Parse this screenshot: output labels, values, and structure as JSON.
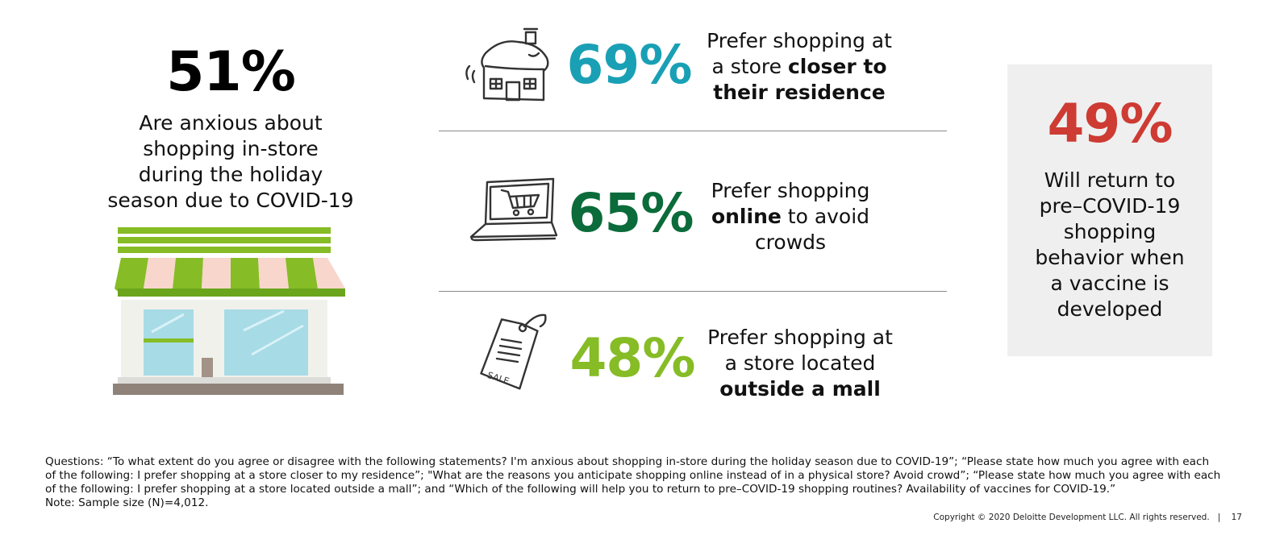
{
  "left": {
    "percent": "51%",
    "lines": [
      "Are anxious about",
      "shopping in-store",
      "during the holiday",
      "season due to COVID-19"
    ]
  },
  "rows": [
    {
      "icon": "house-icon",
      "percent": "69%",
      "color": "#1aa0b5",
      "lines": [
        [
          {
            "t": "Prefer shopping at",
            "b": false
          }
        ],
        [
          {
            "t": "a store ",
            "b": false
          },
          {
            "t": "closer to",
            "b": true
          }
        ],
        [
          {
            "t": "their residence",
            "b": true
          }
        ]
      ]
    },
    {
      "icon": "laptop-cart-icon",
      "percent": "65%",
      "color": "#0b6b3a",
      "lines": [
        [
          {
            "t": "Prefer shopping",
            "b": false
          }
        ],
        [
          {
            "t": "online",
            "b": true
          },
          {
            "t": " to avoid",
            "b": false
          }
        ],
        [
          {
            "t": "crowds",
            "b": false
          }
        ]
      ]
    },
    {
      "icon": "sale-tag-icon",
      "percent": "48%",
      "color": "#86bc25",
      "lines": [
        [
          {
            "t": "Prefer shopping at",
            "b": false
          }
        ],
        [
          {
            "t": "a store located",
            "b": false
          }
        ],
        [
          {
            "t": "outside a mall",
            "b": true
          }
        ]
      ]
    }
  ],
  "right": {
    "percent": "49%",
    "lines": [
      "Will return to",
      "pre–COVID-19",
      "shopping",
      "behavior when",
      "a vaccine is",
      "developed"
    ]
  },
  "icons": {
    "tag_text": "SALE"
  },
  "footer": {
    "questions": [
      "Questions: “To what extent do you agree or disagree with the following statements? I'm anxious about shopping in-store during the holiday season due to COVID-19”; “Please state how much you agree with each",
      "of the following: I prefer shopping at a store closer to my residence”; \"What are the reasons you anticipate shopping online instead of in a physical store? Avoid crowd”; “Please state how much you agree with each",
      "of the following: I prefer shopping at a store located outside a mall”; and “Which of the following will help you to return to pre–COVID-19 shopping routines? Availability of vaccines for COVID-19.”"
    ],
    "note": "Note: Sample size (N)=4,012.",
    "copyright": "Copyright © 2020 Deloitte Development LLC. All rights reserved.",
    "separator": "|",
    "page_number": "17"
  }
}
